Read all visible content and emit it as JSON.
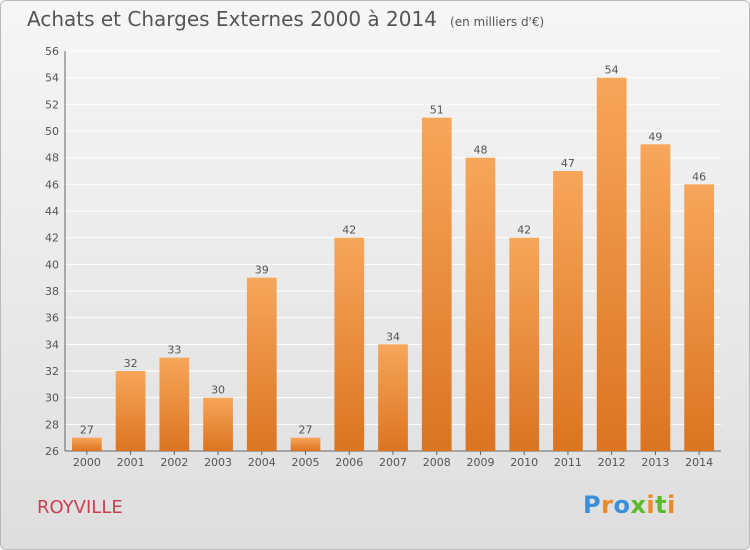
{
  "header": {
    "title": "Achats et Charges Externes 2000 à 2014",
    "subtitle": "(en milliers d'€)"
  },
  "footer": {
    "commune": "ROYVILLE",
    "logo_text": "Proxiti"
  },
  "colors": {
    "bar_top": "#f7a65a",
    "bar_bottom": "#dc7420",
    "grid": "#ffffff",
    "text": "#555555",
    "commune": "#c8404f"
  },
  "chart_data": {
    "type": "bar",
    "title": "Achats et Charges Externes 2000 à 2014",
    "subtitle": "(en milliers d'€)",
    "categories": [
      "2000",
      "2001",
      "2002",
      "2003",
      "2004",
      "2005",
      "2006",
      "2007",
      "2008",
      "2009",
      "2010",
      "2011",
      "2012",
      "2013",
      "2014"
    ],
    "values": [
      27,
      32,
      33,
      30,
      39,
      27,
      42,
      34,
      51,
      48,
      42,
      47,
      54,
      49,
      46
    ],
    "data_labels": [
      "27",
      "32",
      "33",
      "30",
      "39",
      "27",
      "42",
      "34",
      "51",
      "48",
      "42",
      "47",
      "54",
      "49",
      "46"
    ],
    "ylim": [
      26,
      56
    ],
    "yticks": [
      "26",
      "28",
      "30",
      "32",
      "34",
      "36",
      "38",
      "40",
      "42",
      "44",
      "46",
      "48",
      "50",
      "52",
      "54",
      "56"
    ],
    "grid": true,
    "legend": "none"
  }
}
